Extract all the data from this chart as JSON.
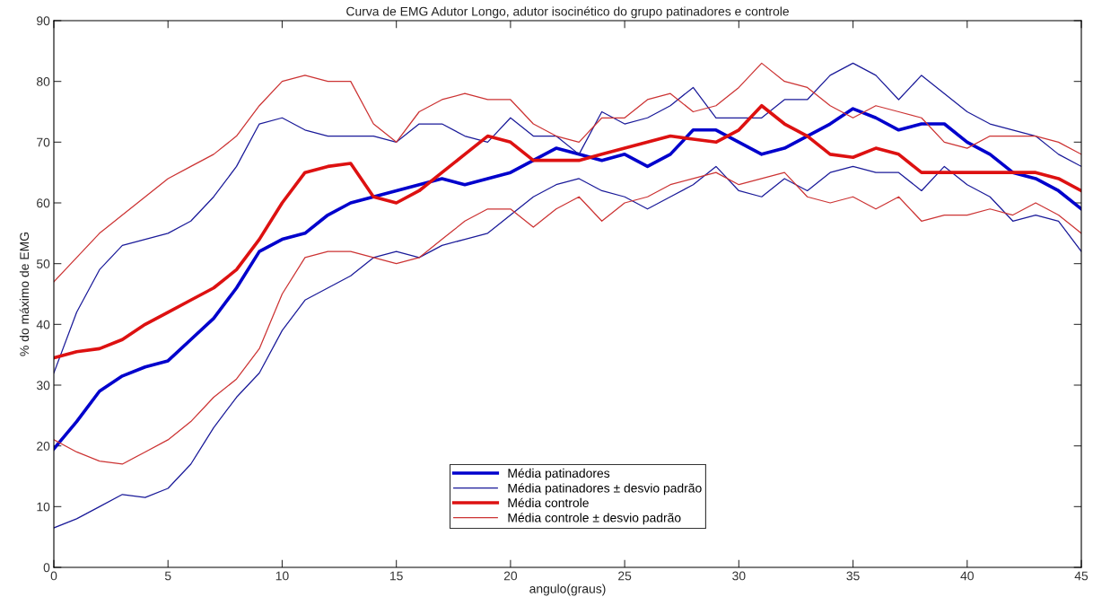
{
  "chart_data": {
    "type": "line",
    "title": "Curva de EMG Adutor Longo, adutor isocinético do grupo patinadores e controle",
    "xlabel": "angulo(graus)",
    "ylabel": "% do máximo de EMG",
    "x": [
      0,
      1,
      2,
      3,
      4,
      5,
      6,
      7,
      8,
      9,
      10,
      11,
      12,
      13,
      14,
      15,
      16,
      17,
      18,
      19,
      20,
      21,
      22,
      23,
      24,
      25,
      26,
      27,
      28,
      29,
      30,
      31,
      32,
      33,
      34,
      35,
      36,
      37,
      38,
      39,
      40,
      41,
      42,
      43,
      44,
      45
    ],
    "series": [
      {
        "name": "Média patinadores",
        "color": "#0000cc",
        "values": [
          19.5,
          24,
          29,
          31.5,
          33,
          34,
          37.5,
          41,
          46,
          52,
          54,
          55,
          58,
          60,
          61,
          62,
          63,
          64,
          63,
          64,
          65,
          67,
          69,
          68,
          67,
          68,
          66,
          68,
          72,
          72,
          70,
          68,
          69,
          71,
          73,
          75.5,
          74,
          72,
          73,
          73,
          70,
          68,
          65,
          64,
          62,
          59
        ]
      },
      {
        "name": "Média patinadores ± desvio padrão",
        "color": "#1a1a99",
        "values": [
          32,
          42,
          49,
          53,
          54,
          55,
          57,
          61,
          66,
          73,
          74,
          72,
          71,
          71,
          71,
          70,
          73,
          73,
          71,
          70,
          74,
          71,
          71,
          68,
          75,
          73,
          74,
          76,
          79,
          74,
          74,
          74,
          77,
          77,
          81,
          83,
          81,
          77,
          81,
          78,
          75,
          73,
          72,
          71,
          68,
          66
        ]
      },
      {
        "color": "#1a1a99",
        "values": [
          6.5,
          8,
          10,
          12,
          11.5,
          13,
          17,
          23,
          28,
          32,
          39,
          44,
          46,
          48,
          51,
          52,
          51,
          53,
          54,
          55,
          58,
          61,
          63,
          64,
          62,
          61,
          59,
          61,
          63,
          66,
          62,
          61,
          64,
          62,
          65,
          66,
          65,
          65,
          62,
          66,
          63,
          61,
          57,
          58,
          57,
          52
        ]
      },
      {
        "name": "Média controle",
        "color": "#dd1111",
        "values": [
          34.5,
          35.5,
          36,
          37.5,
          40,
          42,
          44,
          46,
          49,
          54,
          60,
          65,
          66,
          66.5,
          61,
          60,
          62,
          65,
          68,
          71,
          70,
          67,
          67,
          67,
          68,
          69,
          70,
          71,
          70.5,
          70,
          72,
          76,
          73,
          71,
          68,
          67.5,
          69,
          68,
          65,
          65,
          65,
          65,
          65,
          65,
          64,
          62
        ]
      },
      {
        "name": "Média controle ± desvio padrão",
        "color": "#cc3333",
        "values": [
          47,
          51,
          55,
          58,
          61,
          64,
          66,
          68,
          71,
          76,
          80,
          81,
          80,
          80,
          73,
          70,
          75,
          77,
          78,
          77,
          77,
          73,
          71,
          70,
          74,
          74,
          77,
          78,
          75,
          76,
          79,
          83,
          80,
          79,
          76,
          74,
          76,
          75,
          74,
          70,
          69,
          71,
          71,
          71,
          70,
          68
        ]
      },
      {
        "color": "#cc3333",
        "values": [
          21,
          19,
          17.5,
          17,
          19,
          21,
          24,
          28,
          31,
          36,
          45,
          51,
          52,
          52,
          51,
          50,
          51,
          54,
          57,
          59,
          59,
          56,
          59,
          61,
          57,
          60,
          61,
          63,
          64,
          65,
          63,
          64,
          65,
          61,
          60,
          61,
          59,
          61,
          57,
          58,
          58,
          59,
          58,
          60,
          58,
          55
        ]
      }
    ],
    "xlim": [
      0,
      45
    ],
    "xticks": [
      0,
      5,
      10,
      15,
      20,
      25,
      30,
      35,
      40,
      45
    ],
    "ylim": [
      0,
      90
    ],
    "yticks": [
      0,
      10,
      20,
      30,
      40,
      50,
      60,
      70,
      80,
      90
    ],
    "grid": false,
    "legend": "bottom"
  }
}
